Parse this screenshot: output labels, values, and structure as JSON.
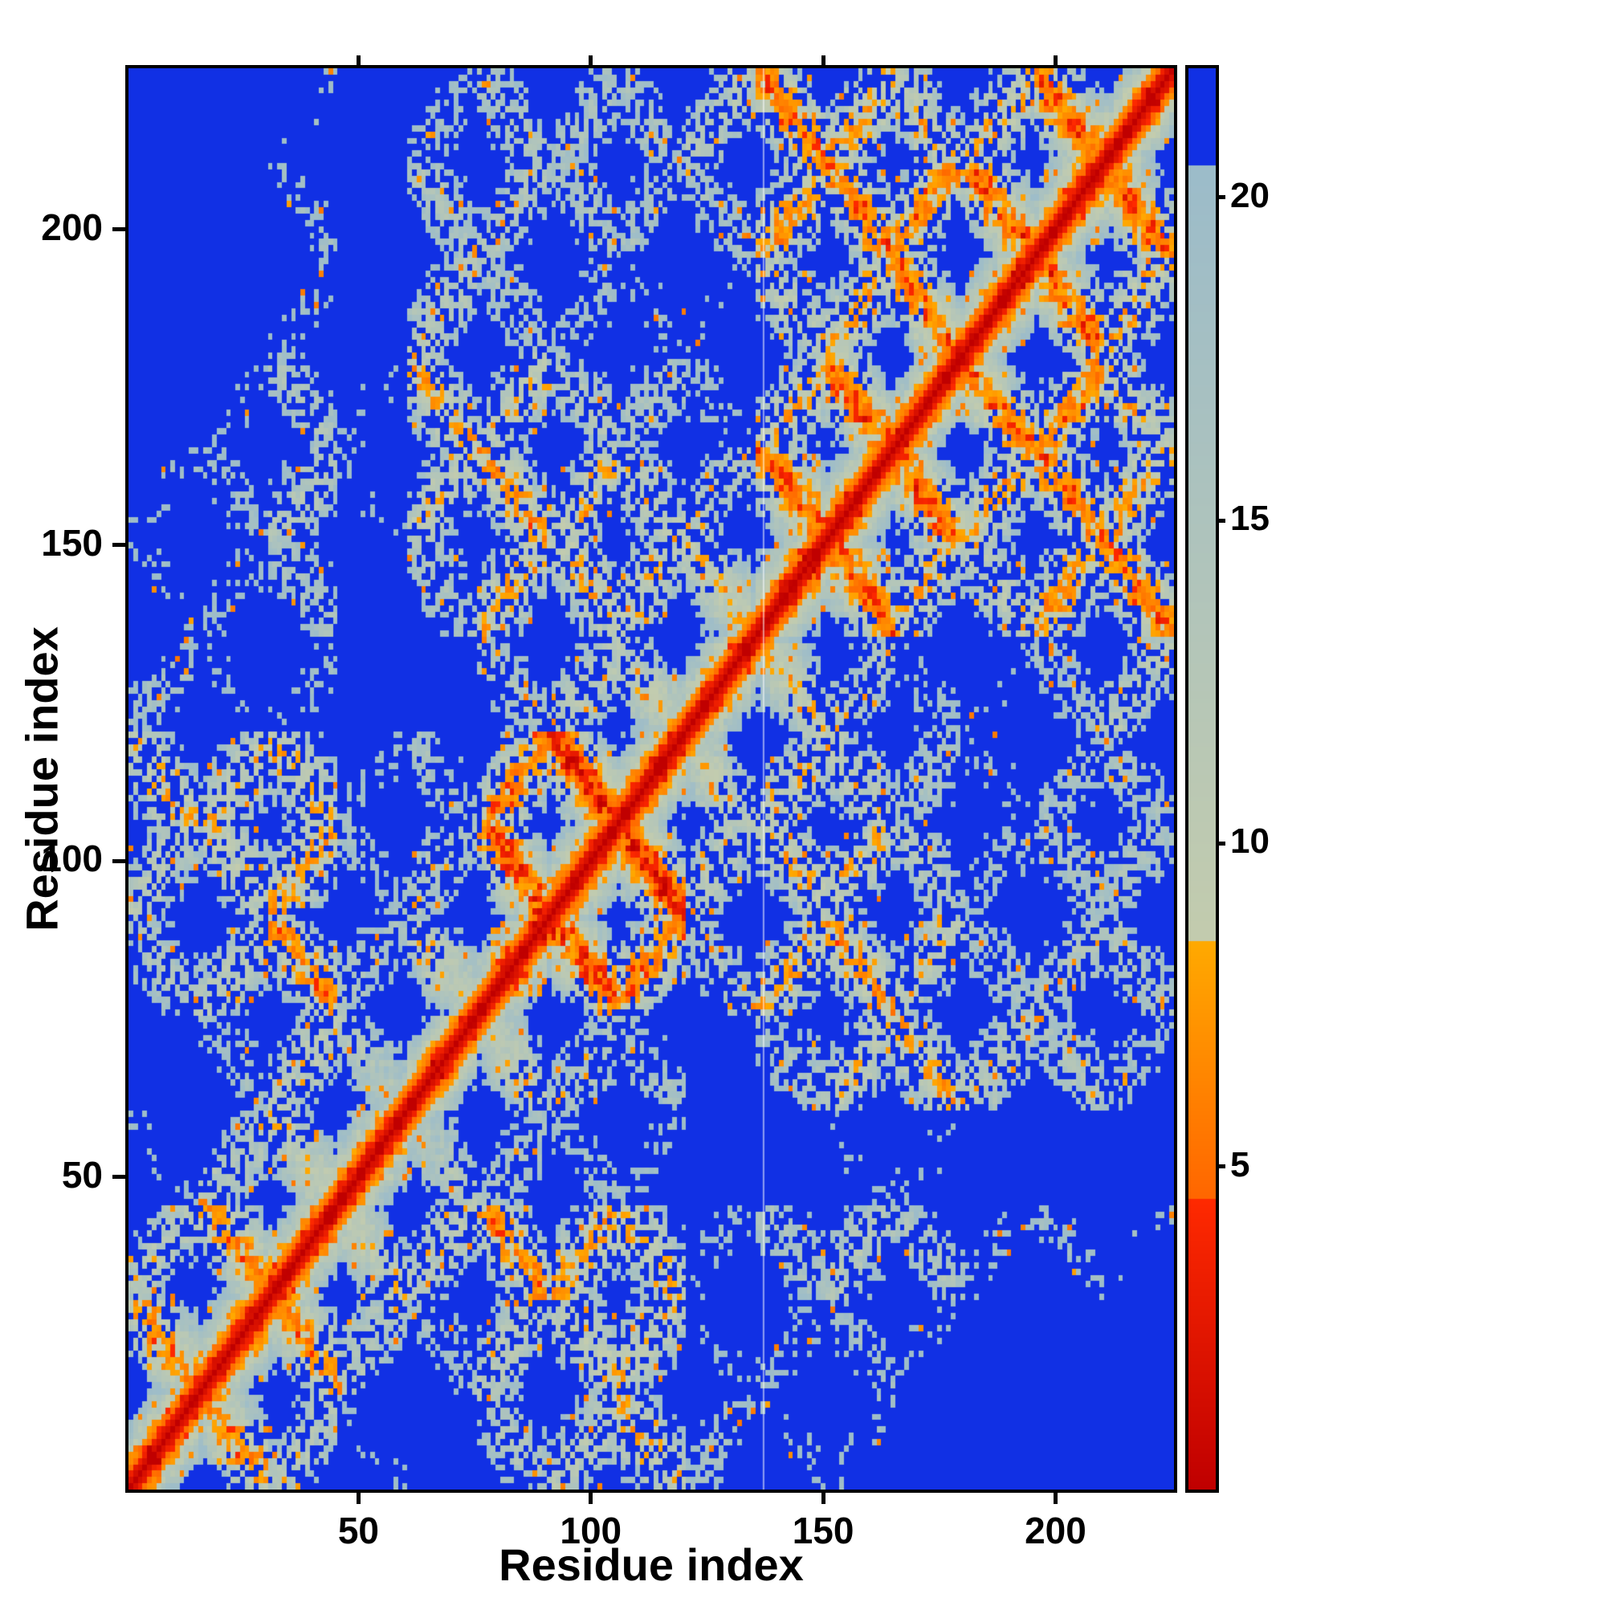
{
  "page": {
    "background": "#ffffff"
  },
  "chart_data": {
    "type": "heatmap",
    "title": "",
    "xlabel": "Residue index",
    "ylabel": "Residue index",
    "x_ticks": [
      50,
      100,
      150,
      200
    ],
    "y_ticks": [
      50,
      100,
      150,
      200
    ],
    "x_range": [
      1,
      225
    ],
    "y_range": [
      1,
      225
    ],
    "n_residues": 225,
    "grid": false,
    "legend": "none",
    "colorbar": {
      "position": "right",
      "vmin": 0,
      "vmax": 22,
      "ticks": [
        5,
        10,
        15,
        20
      ]
    },
    "colormap": {
      "over_color": "#1130e4",
      "background_blue": "#1130e4",
      "stops": [
        {
          "upto": 4.5,
          "from": "#c00000",
          "to": "#ff2a00"
        },
        {
          "upto": 8.5,
          "from": "#ff6600",
          "to": "#ffaa00"
        },
        {
          "upto": 20.5,
          "from": "#c3ccae",
          "to": "#9cbcca"
        }
      ]
    },
    "matrix": {
      "kind": "pairwise-residue-distance",
      "symmetric": true,
      "diagonal_value": 0,
      "artifact_line_residue": 137,
      "pattern_notes": "red main diagonal, orange near-diagonal band, pale gray-green antiparallel X-shaped contact streaks with orange contact specks, deep blue for distances beyond colormap maximum",
      "generator": {
        "seed": 7,
        "segments": 15,
        "segment_length": 15,
        "grid_cols": 4,
        "col_spacing": 6.2,
        "row_spacing": 8.0,
        "step": 1.9,
        "segment_jitter": 2.2,
        "residue_jitter": 0.85,
        "cell_noise": 5.0,
        "dropout_far": 0.42,
        "orange_speck": 0.045,
        "backbone_step": 1.7
      }
    }
  }
}
